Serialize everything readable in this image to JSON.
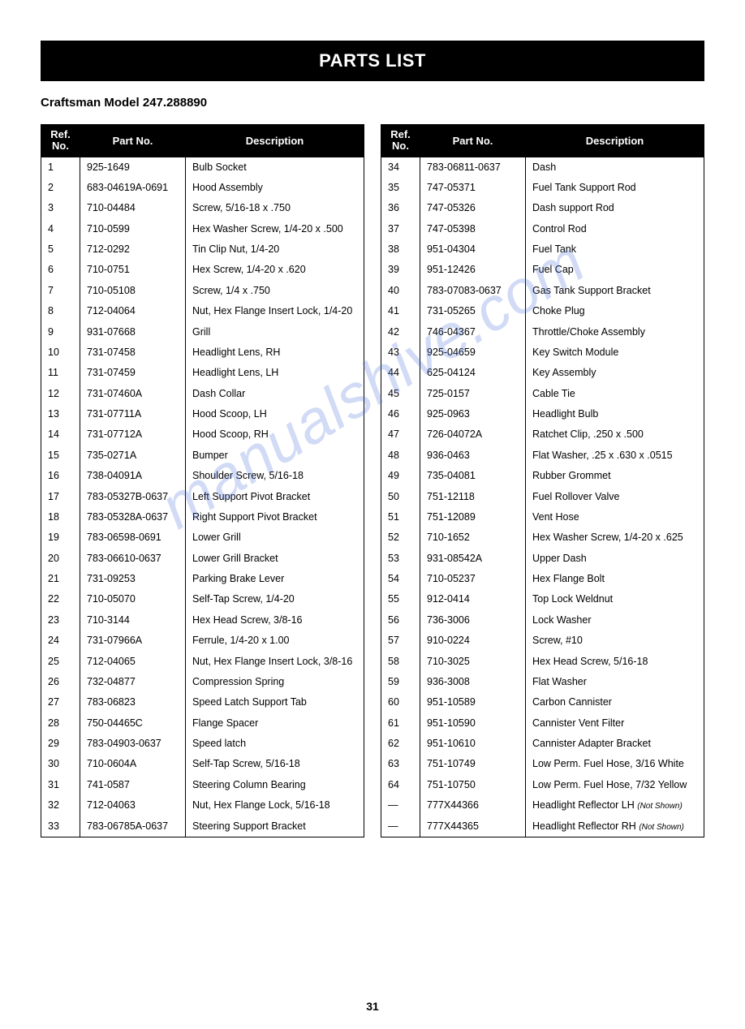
{
  "header": {
    "title": "PARTS LIST"
  },
  "subtitle": "Craftsman Model 247.288890",
  "page_number": "31",
  "watermark": "manualshive.com",
  "table": {
    "columns": [
      "Ref.\nNo.",
      "Part No.",
      "Description"
    ],
    "left_rows": [
      [
        "1",
        "925-1649",
        "Bulb Socket"
      ],
      [
        "2",
        "683-04619A-0691",
        "Hood Assembly"
      ],
      [
        "3",
        "710-04484",
        "Screw, 5/16-18 x .750"
      ],
      [
        "4",
        "710-0599",
        "Hex Washer Screw, 1/4-20 x .500"
      ],
      [
        "5",
        "712-0292",
        "Tin Clip Nut, 1/4-20"
      ],
      [
        "6",
        "710-0751",
        "Hex Screw, 1/4-20 x .620"
      ],
      [
        "7",
        "710-05108",
        "Screw, 1/4 x .750"
      ],
      [
        "8",
        "712-04064",
        "Nut, Hex Flange Insert Lock, 1/4-20"
      ],
      [
        "9",
        "931-07668",
        "Grill"
      ],
      [
        "10",
        "731-07458",
        "Headlight Lens, RH"
      ],
      [
        "11",
        "731-07459",
        "Headlight Lens, LH"
      ],
      [
        "12",
        "731-07460A",
        "Dash Collar"
      ],
      [
        "13",
        "731-07711A",
        "Hood Scoop, LH"
      ],
      [
        "14",
        "731-07712A",
        "Hood Scoop, RH"
      ],
      [
        "15",
        "735-0271A",
        "Bumper"
      ],
      [
        "16",
        "738-04091A",
        "Shoulder Screw, 5/16-18"
      ],
      [
        "17",
        "783-05327B-0637",
        "Left Support Pivot Bracket"
      ],
      [
        "18",
        "783-05328A-0637",
        "Right Support Pivot Bracket"
      ],
      [
        "19",
        "783-06598-0691",
        "Lower Grill"
      ],
      [
        "20",
        "783-06610-0637",
        "Lower Grill Bracket"
      ],
      [
        "21",
        "731-09253",
        "Parking Brake Lever"
      ],
      [
        "22",
        "710-05070",
        "Self-Tap Screw, 1/4-20"
      ],
      [
        "23",
        "710-3144",
        "Hex Head Screw, 3/8-16"
      ],
      [
        "24",
        "731-07966A",
        "Ferrule, 1/4-20 x 1.00"
      ],
      [
        "25",
        "712-04065",
        "Nut, Hex Flange Insert Lock, 3/8-16"
      ],
      [
        "26",
        "732-04877",
        "Compression Spring"
      ],
      [
        "27",
        "783-06823",
        "Speed Latch Support Tab"
      ],
      [
        "28",
        "750-04465C",
        "Flange Spacer"
      ],
      [
        "29",
        "783-04903-0637",
        "Speed latch"
      ],
      [
        "30",
        "710-0604A",
        "Self-Tap Screw, 5/16-18"
      ],
      [
        "31",
        "741-0587",
        "Steering Column Bearing"
      ],
      [
        "32",
        "712-04063",
        "Nut, Hex Flange Lock, 5/16-18"
      ],
      [
        "33",
        "783-06785A-0637",
        "Steering Support Bracket"
      ]
    ],
    "right_rows": [
      [
        "34",
        "783-06811-0637",
        "Dash"
      ],
      [
        "35",
        "747-05371",
        "Fuel Tank Support Rod"
      ],
      [
        "36",
        "747-05326",
        "Dash support Rod"
      ],
      [
        "37",
        "747-05398",
        "Control Rod"
      ],
      [
        "38",
        "951-04304",
        "Fuel Tank"
      ],
      [
        "39",
        "951-12426",
        "Fuel Cap"
      ],
      [
        "40",
        "783-07083-0637",
        "Gas Tank Support Bracket"
      ],
      [
        "41",
        "731-05265",
        "Choke Plug"
      ],
      [
        "42",
        "746-04367",
        "Throttle/Choke Assembly"
      ],
      [
        "43",
        "925-04659",
        "Key Switch Module"
      ],
      [
        "44",
        "625-04124",
        "Key Assembly"
      ],
      [
        "45",
        "725-0157",
        "Cable Tie"
      ],
      [
        "46",
        "925-0963",
        "Headlight Bulb"
      ],
      [
        "47",
        "726-04072A",
        "Ratchet Clip, .250 x .500"
      ],
      [
        "48",
        "936-0463",
        "Flat Washer, .25 x .630 x .0515"
      ],
      [
        "49",
        "735-04081",
        "Rubber Grommet"
      ],
      [
        "50",
        "751-12118",
        "Fuel Rollover Valve"
      ],
      [
        "51",
        "751-12089",
        "Vent Hose"
      ],
      [
        "52",
        "710-1652",
        "Hex Washer Screw, 1/4-20 x .625"
      ],
      [
        "53",
        "931-08542A",
        "Upper Dash"
      ],
      [
        "54",
        "710-05237",
        "Hex Flange Bolt"
      ],
      [
        "55",
        "912-0414",
        "Top Lock Weldnut"
      ],
      [
        "56",
        "736-3006",
        "Lock Washer"
      ],
      [
        "57",
        "910-0224",
        "Screw, #10"
      ],
      [
        "58",
        "710-3025",
        "Hex Head Screw, 5/16-18"
      ],
      [
        "59",
        "936-3008",
        "Flat Washer"
      ],
      [
        "60",
        "951-10589",
        "Carbon Cannister"
      ],
      [
        "61",
        "951-10590",
        "Cannister Vent Filter"
      ],
      [
        "62",
        "951-10610",
        "Cannister Adapter Bracket"
      ],
      [
        "63",
        "751-10749",
        "Low Perm. Fuel Hose, 3/16 White"
      ],
      [
        "64",
        "751-10750",
        "Low Perm. Fuel Hose, 7/32 Yellow"
      ],
      [
        "—",
        "777X44366",
        "Headlight Reflector LH (Not Shown)"
      ],
      [
        "—",
        "777X44365",
        "Headlight Reflector RH (Not Shown)"
      ]
    ]
  }
}
